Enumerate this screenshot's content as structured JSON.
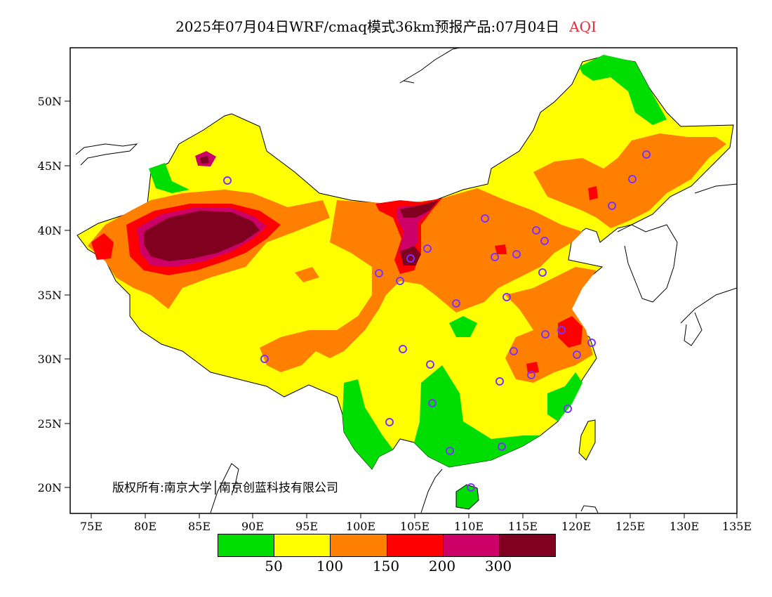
{
  "title": {
    "main": "2025年07月04日WRF/cmaq模式36km预报产品:07月04日",
    "variable": "AQI",
    "variable_color": "#e0303a"
  },
  "axes": {
    "y_ticks": [
      "50N",
      "45N",
      "40N",
      "35N",
      "30N",
      "25N",
      "20N"
    ],
    "x_ticks": [
      "75E",
      "80E",
      "85E",
      "90E",
      "95E",
      "100E",
      "105E",
      "110E",
      "115E",
      "120E",
      "125E",
      "130E",
      "135E"
    ]
  },
  "copyright": "版权所有:南京大学│南京创蓝科技有限公司",
  "legend": {
    "colors": [
      "#00dd00",
      "#ffff00",
      "#ff8000",
      "#ff0000",
      "#cc0066",
      "#800020"
    ],
    "labels": [
      "50",
      "100",
      "150",
      "200",
      "300"
    ]
  }
}
